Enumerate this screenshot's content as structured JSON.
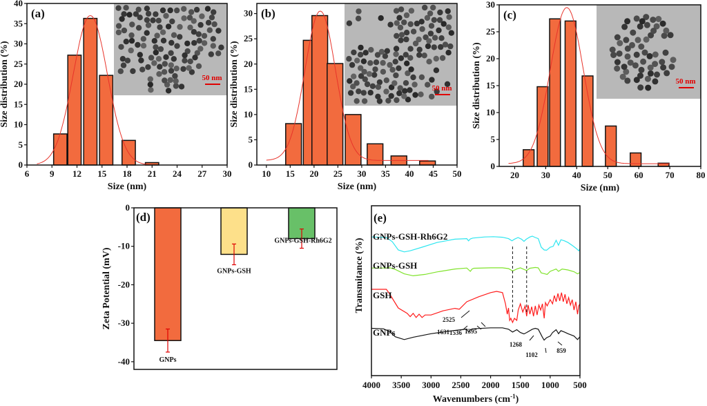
{
  "colors": {
    "bar": "#f26b3e",
    "fit": "#e8332a",
    "axis": "#111111",
    "inset_bg": "#b8b8b8",
    "particle": "#3a3a3a",
    "scale": "#e00000",
    "zeta": [
      "#f26b3e",
      "#fde08a",
      "#68c068"
    ],
    "errbar": "#e00000",
    "ftir": [
      "#2ee6f0",
      "#7fe32a",
      "#ff1b1b",
      "#111111"
    ]
  },
  "chart_data": [
    {
      "id": "a",
      "type": "bar",
      "panel_label": "(a)",
      "title": "",
      "xlabel": "Size (nm)",
      "ylabel": "Size distribution (%)",
      "xlim": [
        6,
        30
      ],
      "ylim": [
        0,
        40
      ],
      "xticks": [
        6,
        9,
        12,
        15,
        18,
        21,
        24,
        27,
        30
      ],
      "yticks": [
        0,
        5,
        10,
        15,
        20,
        25,
        30,
        35,
        40
      ],
      "bar_width": 1.6,
      "x": [
        10.0,
        11.7,
        13.6,
        15.5,
        18.2,
        21.0
      ],
      "values": [
        7.7,
        27.2,
        36.3,
        22.2,
        6.1,
        0.6
      ],
      "fit": {
        "type": "gaussian",
        "center": 13.6,
        "sigma": 2.05,
        "amplitude": 37.0,
        "offset": 0,
        "x_range": [
          7.2,
          21
        ]
      },
      "inset": {
        "description": "TEM image of nanoparticles",
        "scale_bar": "50 nm"
      }
    },
    {
      "id": "b",
      "type": "bar",
      "panel_label": "(b)",
      "title": "",
      "xlabel": "Size (nm)",
      "ylabel": "Size distribution (%)",
      "xlim": [
        8,
        50
      ],
      "ylim": [
        0,
        32
      ],
      "xticks": [
        10,
        15,
        20,
        25,
        30,
        35,
        40,
        45,
        50
      ],
      "yticks": [
        0,
        5,
        10,
        15,
        20,
        25,
        30
      ],
      "bar_width": 3.3,
      "x": [
        15.7,
        19.4,
        21.2,
        24.4,
        28.2,
        32.8,
        37.8,
        43.8
      ],
      "values": [
        8.2,
        24.7,
        29.6,
        20.1,
        10.0,
        4.2,
        1.8,
        0.8
      ],
      "fit": {
        "type": "gaussian",
        "center": 21.3,
        "sigma": 3.2,
        "amplitude": 29.6,
        "offset": 0.9,
        "x_range": [
          10,
          44
        ]
      },
      "inset": {
        "description": "TEM image of nanoparticles",
        "scale_bar": "50 nm"
      }
    },
    {
      "id": "c",
      "type": "bar",
      "panel_label": "(c)",
      "title": "",
      "xlabel": "Size (nm)",
      "ylabel": "Size distribution (%)",
      "xlim": [
        15,
        80
      ],
      "ylim": [
        0,
        30
      ],
      "xticks": [
        20,
        30,
        40,
        50,
        60,
        70,
        80
      ],
      "yticks": [
        0,
        5,
        10,
        15,
        20,
        25,
        30
      ],
      "bar_width": 3.5,
      "x": [
        24.5,
        29.0,
        33.0,
        38.0,
        43.5,
        51.0,
        59.0,
        68.0
      ],
      "values": [
        3.1,
        14.8,
        27.4,
        27.0,
        16.8,
        7.5,
        2.5,
        0.6
      ],
      "fit": {
        "type": "gaussian",
        "center": 36.8,
        "sigma": 5.3,
        "amplitude": 29.0,
        "offset": 0.5,
        "x_range": [
          18,
          70
        ]
      },
      "inset": {
        "description": "TEM image of nanoparticles",
        "scale_bar": "50 nm"
      }
    },
    {
      "id": "d",
      "type": "bar",
      "panel_label": "(d)",
      "title": "",
      "xlabel": "",
      "ylabel": "Zeta Potential (mV)",
      "ylim": [
        -42,
        0
      ],
      "yticks": [
        0,
        -10,
        -20,
        -30,
        -40
      ],
      "categories": [
        "GNPs",
        "GNPs-GSH",
        "GNPs-GSH-Rh6G2"
      ],
      "values": [
        -34.5,
        -12.1,
        -8.0
      ],
      "errors": [
        3.0,
        2.7,
        2.5
      ]
    },
    {
      "id": "e",
      "type": "line",
      "panel_label": "(e)",
      "title": "",
      "xlabel": "Wavenumbers (cm",
      "xlabel_sup": "-1",
      "xlabel_end": ")",
      "ylabel": "Transmitance (%)",
      "xlim": [
        4000,
        500
      ],
      "xticks": [
        4000,
        3500,
        3000,
        2500,
        2000,
        1500,
        1000,
        500
      ],
      "yticks_shown": false,
      "dashed_lines_at": [
        1631,
        1395
      ],
      "series": [
        {
          "name": "GNPs-GSH-Rh6G2",
          "offset": 3.0,
          "x": [
            4000,
            3750,
            3650,
            3550,
            3450,
            3350,
            3150,
            2900,
            2600,
            2400,
            2370,
            2340,
            2300,
            2100,
            1950,
            1800,
            1700,
            1640,
            1600,
            1540,
            1480,
            1440,
            1400,
            1340,
            1300,
            1250,
            1200,
            1150,
            1100,
            1060,
            1000,
            950,
            900,
            860,
            820,
            760,
            700,
            620,
            560,
            520,
            500
          ],
          "y": [
            0.92,
            0.9,
            0.75,
            0.45,
            0.38,
            0.42,
            0.55,
            0.72,
            0.84,
            0.86,
            0.78,
            0.85,
            0.88,
            0.92,
            0.93,
            0.91,
            0.86,
            0.78,
            0.84,
            0.9,
            0.84,
            0.76,
            0.84,
            0.92,
            0.95,
            0.9,
            0.86,
            0.55,
            0.45,
            0.44,
            0.55,
            0.58,
            0.8,
            0.62,
            0.82,
            0.78,
            0.72,
            0.6,
            0.5,
            0.42,
            0.5
          ]
        },
        {
          "name": "GNPs-GSH",
          "offset": 2.0,
          "x": [
            4000,
            3750,
            3700,
            3600,
            3450,
            3300,
            3100,
            2900,
            2600,
            2400,
            2340,
            2310,
            2280,
            2000,
            1800,
            1700,
            1630,
            1560,
            1500,
            1440,
            1395,
            1340,
            1250,
            1200,
            1150,
            1100,
            1050,
            1000,
            900,
            860,
            800,
            700,
            600,
            540,
            500
          ],
          "y": [
            0.85,
            0.85,
            0.87,
            0.78,
            0.55,
            0.45,
            0.52,
            0.65,
            0.8,
            0.85,
            0.68,
            0.8,
            0.84,
            0.86,
            0.86,
            0.82,
            0.7,
            0.8,
            0.86,
            0.78,
            0.72,
            0.84,
            0.88,
            0.86,
            0.6,
            0.56,
            0.52,
            0.68,
            0.8,
            0.68,
            0.8,
            0.75,
            0.66,
            0.55,
            0.62
          ]
        },
        {
          "name": "GSH",
          "offset": 1.0,
          "x": [
            4000,
            3750,
            3700,
            3550,
            3400,
            3350,
            3300,
            3250,
            3200,
            3150,
            3100,
            3000,
            2800,
            2600,
            2525,
            2400,
            2200,
            2000,
            1900,
            1800,
            1750,
            1720,
            1700,
            1680,
            1660,
            1631,
            1600,
            1560,
            1536,
            1500,
            1460,
            1420,
            1395,
            1370,
            1340,
            1310,
            1280,
            1250,
            1220,
            1190,
            1160,
            1130,
            1100,
            1080,
            1050,
            1000,
            960,
            930,
            900,
            870,
            840,
            810,
            780,
            750,
            720,
            690,
            660,
            630,
            600,
            570,
            540,
            520,
            500
          ],
          "y": [
            0.8,
            0.8,
            0.7,
            0.35,
            0.22,
            0.14,
            0.22,
            0.12,
            0.2,
            0.12,
            0.18,
            0.18,
            0.28,
            0.34,
            0.32,
            0.5,
            0.62,
            0.72,
            0.75,
            0.72,
            0.45,
            0.2,
            0.35,
            0.05,
            0.1,
            0.0,
            0.1,
            0.05,
            0.3,
            0.45,
            0.25,
            0.4,
            0.15,
            0.42,
            0.2,
            0.38,
            0.15,
            0.4,
            0.18,
            0.42,
            0.3,
            0.45,
            0.1,
            0.48,
            0.4,
            0.55,
            0.45,
            0.65,
            0.5,
            0.7,
            0.52,
            0.72,
            0.5,
            0.68,
            0.45,
            0.6,
            0.42,
            0.55,
            0.3,
            0.5,
            0.2,
            0.4,
            0.45
          ]
        },
        {
          "name": "GNPs",
          "offset": 0.0,
          "x": [
            4000,
            3800,
            3700,
            3600,
            3450,
            3300,
            3000,
            2700,
            2400,
            2370,
            2340,
            2300,
            2000,
            1800,
            1700,
            1631,
            1560,
            1500,
            1440,
            1395,
            1300,
            1250,
            1200,
            1130,
            1102,
            1060,
            1000,
            960,
            900,
            859,
            820,
            760,
            700,
            600,
            540,
            500
          ],
          "y": [
            0.78,
            0.76,
            0.65,
            0.42,
            0.3,
            0.4,
            0.55,
            0.66,
            0.75,
            0.62,
            0.72,
            0.76,
            0.8,
            0.8,
            0.74,
            0.62,
            0.72,
            0.6,
            0.54,
            0.6,
            0.74,
            0.78,
            0.74,
            0.4,
            0.28,
            0.38,
            0.45,
            0.6,
            0.72,
            0.55,
            0.68,
            0.62,
            0.55,
            0.45,
            0.3,
            0.42
          ]
        }
      ],
      "annotations": [
        "2525",
        "1631",
        "1536",
        "1395",
        "1268",
        "1102",
        "859"
      ]
    }
  ]
}
